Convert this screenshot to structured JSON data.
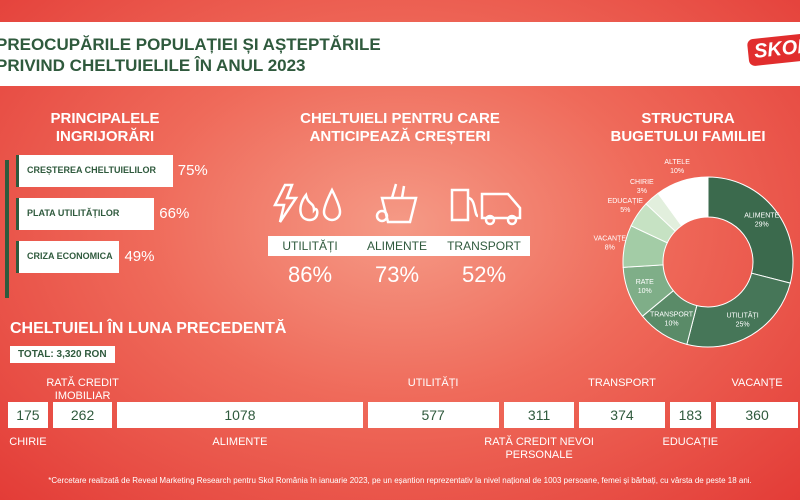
{
  "header": {
    "title_lines": [
      "PREOCUPĂRILE POPULAȚIEI ȘI AȘTEPTĂRILE",
      "PRIVIND CHELTUIELILE ÎN ANUL 2023"
    ],
    "logo": "SKOL"
  },
  "chart_data": [
    {
      "type": "hbar",
      "title_lines": [
        "PRINCIPALELE",
        "INGRIJORĂRI"
      ],
      "categories": [
        "CREȘTEREA CHELTUIELILOR",
        "PLATA UTILITĂȚILOR",
        "CRIZA ECONOMICA"
      ],
      "values": [
        75,
        66,
        49
      ],
      "value_labels": [
        "75%",
        "66%",
        "49%"
      ]
    },
    {
      "type": "stat",
      "title_lines": [
        "CHELTUIELI PENTRU CARE",
        "ANTICIPEAZĂ CREȘTERI"
      ],
      "categories": [
        "UTILITĂȚI",
        "ALIMENTE",
        "TRANSPORT"
      ],
      "values": [
        86,
        73,
        52
      ],
      "value_labels": [
        "86%",
        "73%",
        "52%"
      ]
    },
    {
      "type": "donut",
      "title_lines": [
        "STRUCTURA",
        "BUGETULUI FAMILIEI"
      ],
      "categories": [
        "ALIMENTE",
        "UTILITĂȚI",
        "TRANSPORT",
        "RATE",
        "VACANȚE",
        "EDUCAȚIE",
        "CHIRIE",
        "ALTELE"
      ],
      "values": [
        29,
        25,
        10,
        10,
        8,
        5,
        3,
        10
      ],
      "value_labels": [
        "29%",
        "25%",
        "10%",
        "10%",
        "8%",
        "5%",
        "3%",
        "10%"
      ],
      "colors": [
        "#3b6a4d",
        "#467658",
        "#5a8b68",
        "#7fae88",
        "#a3cca6",
        "#c6e2c3",
        "#e2efdd",
        "#ffffff"
      ]
    },
    {
      "type": "segments",
      "title": "CHELTUIELI ÎN LUNA PRECEDENTĂ",
      "total": "TOTAL: 3,320 RON",
      "categories": [
        "CHIRIE",
        "RATĂ CREDIT IMOBILIAR",
        "ALIMENTE",
        "UTILITĂȚI",
        "RATĂ CREDIT NEVOI PERSONALE",
        "TRANSPORT",
        "EDUCAȚIE",
        "VACANȚE"
      ],
      "values": [
        175,
        262,
        1078,
        577,
        311,
        374,
        183,
        360
      ]
    }
  ],
  "footnote": "*Cercetare realizată de Reveal Marketing Research pentru Skol România în ianuarie 2023, pe un eșantion reprezentativ la nivel național de 1003 persoane, femei și bărbați, cu vârsta de peste 18 ani."
}
